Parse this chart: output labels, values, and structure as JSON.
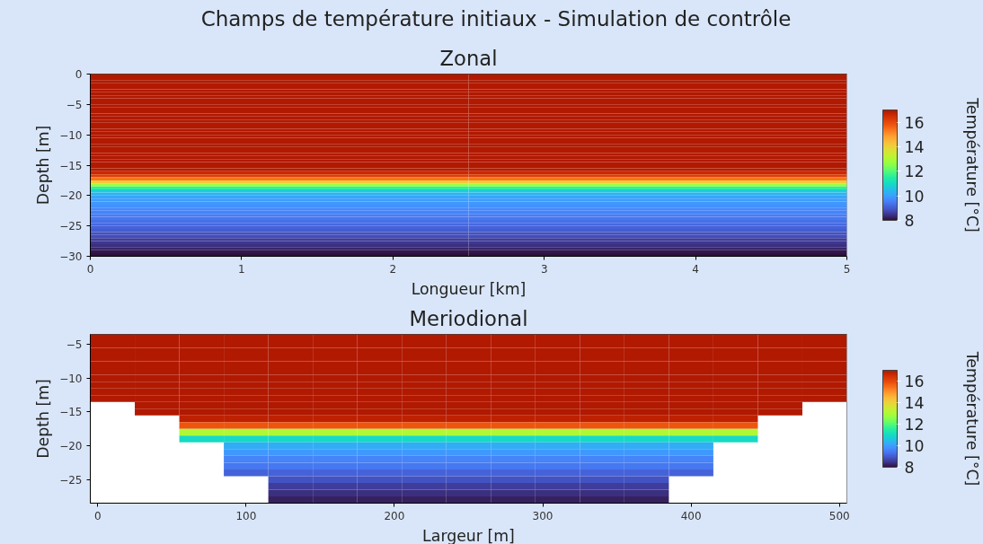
{
  "chart_data": [
    {
      "type": "heatmap",
      "title": "Champs de température initiaux - Simulation de contrôle",
      "subtitle": "Zonal",
      "xlabel": "Longueur [km]",
      "ylabel": "Depth [m]",
      "clabel": "Température [°C]",
      "x": [
        0,
        5
      ],
      "y": [
        -0.25,
        -0.75,
        -1.25,
        -1.75,
        -2.25,
        -2.75,
        -3.25,
        -3.75,
        -4.25,
        -4.75,
        -5.25,
        -5.75,
        -6.25,
        -6.75,
        -7.25,
        -7.75,
        -8.25,
        -8.75,
        -9.25,
        -9.75,
        -10.25,
        -10.75,
        -11.25,
        -11.75,
        -12.25,
        -12.75,
        -13.25,
        -13.75,
        -14.25,
        -14.75,
        -15.25,
        -15.75,
        -16.25,
        -16.75,
        -17.25,
        -17.75,
        -18.25,
        -18.75,
        -19.25,
        -19.75,
        -20.25,
        -20.75,
        -21.25,
        -21.75,
        -22.25,
        -22.75,
        -23.25,
        -23.75,
        -24.25,
        -24.75,
        -25.25,
        -25.75,
        -26.25,
        -26.75,
        -27.25,
        -27.75,
        -28.25,
        -28.75,
        -29.25,
        -29.75
      ],
      "cells": [
        [
          17,
          17
        ],
        [
          17,
          17
        ],
        [
          17,
          17
        ],
        [
          17,
          17
        ],
        [
          17,
          17
        ],
        [
          17,
          17
        ],
        [
          17,
          17
        ],
        [
          17,
          17
        ],
        [
          17,
          17
        ],
        [
          17,
          17
        ],
        [
          17,
          17
        ],
        [
          17,
          17
        ],
        [
          17,
          17
        ],
        [
          17,
          17
        ],
        [
          17,
          17
        ],
        [
          17,
          17
        ],
        [
          17,
          17
        ],
        [
          17,
          17
        ],
        [
          17,
          17
        ],
        [
          17,
          17
        ],
        [
          17,
          17
        ],
        [
          17,
          17
        ],
        [
          17,
          17
        ],
        [
          17,
          17
        ],
        [
          17,
          17
        ],
        [
          17,
          17
        ],
        [
          17,
          17
        ],
        [
          17,
          17
        ],
        [
          17,
          17
        ],
        [
          17,
          17
        ],
        [
          17,
          17
        ],
        [
          16.9,
          16.9
        ],
        [
          16.6,
          16.6
        ],
        [
          16.2,
          16.2
        ],
        [
          15.4,
          15.4
        ],
        [
          14.2,
          14.2
        ],
        [
          12.8,
          12.8
        ],
        [
          11.6,
          11.6
        ],
        [
          10.8,
          10.8
        ],
        [
          10.3,
          10.3
        ],
        [
          10.1,
          10.1
        ],
        [
          10.0,
          10.0
        ],
        [
          9.9,
          9.9
        ],
        [
          9.8,
          9.8
        ],
        [
          9.7,
          9.7
        ],
        [
          9.6,
          9.6
        ],
        [
          9.5,
          9.5
        ],
        [
          9.4,
          9.4
        ],
        [
          9.3,
          9.3
        ],
        [
          9.2,
          9.2
        ],
        [
          9.1,
          9.1
        ],
        [
          9.0,
          9.0
        ],
        [
          8.9,
          8.9
        ],
        [
          8.8,
          8.8
        ],
        [
          8.6,
          8.6
        ],
        [
          8.5,
          8.5
        ],
        [
          8.4,
          8.4
        ],
        [
          8.3,
          8.3
        ],
        [
          8.1,
          8.1
        ],
        [
          8.0,
          8.0
        ]
      ],
      "xlim": [
        0,
        5
      ],
      "xticks": [
        0,
        1,
        2,
        3,
        4,
        5
      ],
      "ylim": [
        -30,
        0
      ],
      "yticks": [
        0,
        {
          "value": -5,
          "label": "−5"
        },
        {
          "value": -10,
          "label": "−10"
        },
        {
          "value": -15,
          "label": "−15"
        },
        {
          "value": -20,
          "label": "−20"
        },
        {
          "value": -25,
          "label": "−25"
        },
        {
          "value": -30,
          "label": "−30"
        }
      ],
      "clim": [
        8,
        17
      ],
      "cticks": [
        8,
        10,
        12,
        14,
        16
      ],
      "grid": false
    },
    {
      "type": "heatmap",
      "subtitle": "Meriodional",
      "xlabel": "Largeur [m]",
      "ylabel": "Depth [m]",
      "clabel": "Température [°C]",
      "x": [
        10,
        40,
        70,
        100,
        130,
        160,
        190,
        220,
        250,
        280,
        310,
        340,
        370,
        400,
        430,
        460,
        490
      ],
      "y": [
        -4,
        -5,
        -6,
        -7,
        -8,
        -9,
        -10,
        -11,
        -12,
        -13,
        -14,
        -15,
        -16,
        -17,
        -18,
        -19,
        -20,
        -21,
        -22,
        -23,
        -24,
        -25,
        -26,
        -27,
        -28
      ],
      "cells": [
        [
          17,
          17,
          17,
          17,
          17,
          17,
          17,
          17,
          17,
          17,
          17,
          17,
          17,
          17,
          17,
          17,
          17
        ],
        [
          17,
          17,
          17,
          17,
          17,
          17,
          17,
          17,
          17,
          17,
          17,
          17,
          17,
          17,
          17,
          17,
          17
        ],
        [
          17,
          17,
          17,
          17,
          17,
          17,
          17,
          17,
          17,
          17,
          17,
          17,
          17,
          17,
          17,
          17,
          17
        ],
        [
          17,
          17,
          17,
          17,
          17,
          17,
          17,
          17,
          17,
          17,
          17,
          17,
          17,
          17,
          17,
          17,
          17
        ],
        [
          17,
          17,
          17,
          17,
          17,
          17,
          17,
          17,
          17,
          17,
          17,
          17,
          17,
          17,
          17,
          17,
          17
        ],
        [
          17,
          17,
          17,
          17,
          17,
          17,
          17,
          17,
          17,
          17,
          17,
          17,
          17,
          17,
          17,
          17,
          17
        ],
        [
          17,
          17,
          17,
          17,
          17,
          17,
          17,
          17,
          17,
          17,
          17,
          17,
          17,
          17,
          17,
          17,
          17
        ],
        [
          17,
          17,
          17,
          17,
          17,
          17,
          17,
          17,
          17,
          17,
          17,
          17,
          17,
          17,
          17,
          17,
          17
        ],
        [
          17,
          17,
          17,
          17,
          17,
          17,
          17,
          17,
          17,
          17,
          17,
          17,
          17,
          17,
          17,
          17,
          17
        ],
        [
          17,
          17,
          17,
          17,
          17,
          17,
          17,
          17,
          17,
          17,
          17,
          17,
          17,
          17,
          17,
          17,
          17
        ],
        [
          null,
          17,
          17,
          17,
          17,
          17,
          17,
          17,
          17,
          17,
          17,
          17,
          17,
          17,
          17,
          17,
          null
        ],
        [
          null,
          17,
          17,
          17,
          17,
          17,
          17,
          17,
          17,
          17,
          17,
          17,
          17,
          17,
          17,
          17,
          null
        ],
        [
          null,
          null,
          16.8,
          16.8,
          16.8,
          16.8,
          16.8,
          16.8,
          16.8,
          16.8,
          16.8,
          16.8,
          16.8,
          16.8,
          16.8,
          null,
          null
        ],
        [
          null,
          null,
          15.8,
          15.8,
          15.8,
          15.8,
          15.8,
          15.8,
          15.8,
          15.8,
          15.8,
          15.8,
          15.8,
          15.8,
          15.8,
          null,
          null
        ],
        [
          null,
          null,
          13.0,
          13.0,
          13.0,
          13.0,
          13.0,
          13.0,
          13.0,
          13.0,
          13.0,
          13.0,
          13.0,
          13.0,
          13.0,
          null,
          null
        ],
        [
          null,
          null,
          11.0,
          11.0,
          11.0,
          11.0,
          11.0,
          11.0,
          11.0,
          11.0,
          11.0,
          11.0,
          11.0,
          11.0,
          11.0,
          null,
          null
        ],
        [
          null,
          null,
          null,
          10.2,
          10.2,
          10.2,
          10.2,
          10.2,
          10.2,
          10.2,
          10.2,
          10.2,
          10.2,
          10.2,
          null,
          null,
          null
        ],
        [
          null,
          null,
          null,
          9.9,
          9.9,
          9.9,
          9.9,
          9.9,
          9.9,
          9.9,
          9.9,
          9.9,
          9.9,
          9.9,
          null,
          null,
          null
        ],
        [
          null,
          null,
          null,
          9.6,
          9.6,
          9.6,
          9.6,
          9.6,
          9.6,
          9.6,
          9.6,
          9.6,
          9.6,
          9.6,
          null,
          null,
          null
        ],
        [
          null,
          null,
          null,
          9.4,
          9.4,
          9.4,
          9.4,
          9.4,
          9.4,
          9.4,
          9.4,
          9.4,
          9.4,
          9.4,
          null,
          null,
          null
        ],
        [
          null,
          null,
          null,
          9.1,
          9.1,
          9.1,
          9.1,
          9.1,
          9.1,
          9.1,
          9.1,
          9.1,
          9.1,
          9.1,
          null,
          null,
          null
        ],
        [
          null,
          null,
          null,
          null,
          8.9,
          8.9,
          8.9,
          8.9,
          8.9,
          8.9,
          8.9,
          8.9,
          8.9,
          null,
          null,
          null,
          null
        ],
        [
          null,
          null,
          null,
          null,
          8.6,
          8.6,
          8.6,
          8.6,
          8.6,
          8.6,
          8.6,
          8.6,
          8.6,
          null,
          null,
          null,
          null
        ],
        [
          null,
          null,
          null,
          null,
          8.4,
          8.4,
          8.4,
          8.4,
          8.4,
          8.4,
          8.4,
          8.4,
          8.4,
          null,
          null,
          null,
          null
        ],
        [
          null,
          null,
          null,
          null,
          8.2,
          8.2,
          8.2,
          8.2,
          8.2,
          8.2,
          8.2,
          8.2,
          8.2,
          null,
          null,
          null,
          null
        ]
      ],
      "xlim": [
        -5,
        505
      ],
      "xticks": [
        0,
        100,
        200,
        300,
        400,
        500
      ],
      "ylim": [
        -28.5,
        -3.5
      ],
      "yticks": [
        {
          "value": -5,
          "label": "−5"
        },
        {
          "value": -10,
          "label": "−10"
        },
        {
          "value": -15,
          "label": "−15"
        },
        {
          "value": -20,
          "label": "−20"
        },
        {
          "value": -25,
          "label": "−25"
        }
      ],
      "clim": [
        8,
        17
      ],
      "cticks": [
        8,
        10,
        12,
        14,
        16
      ],
      "grid": false
    }
  ]
}
